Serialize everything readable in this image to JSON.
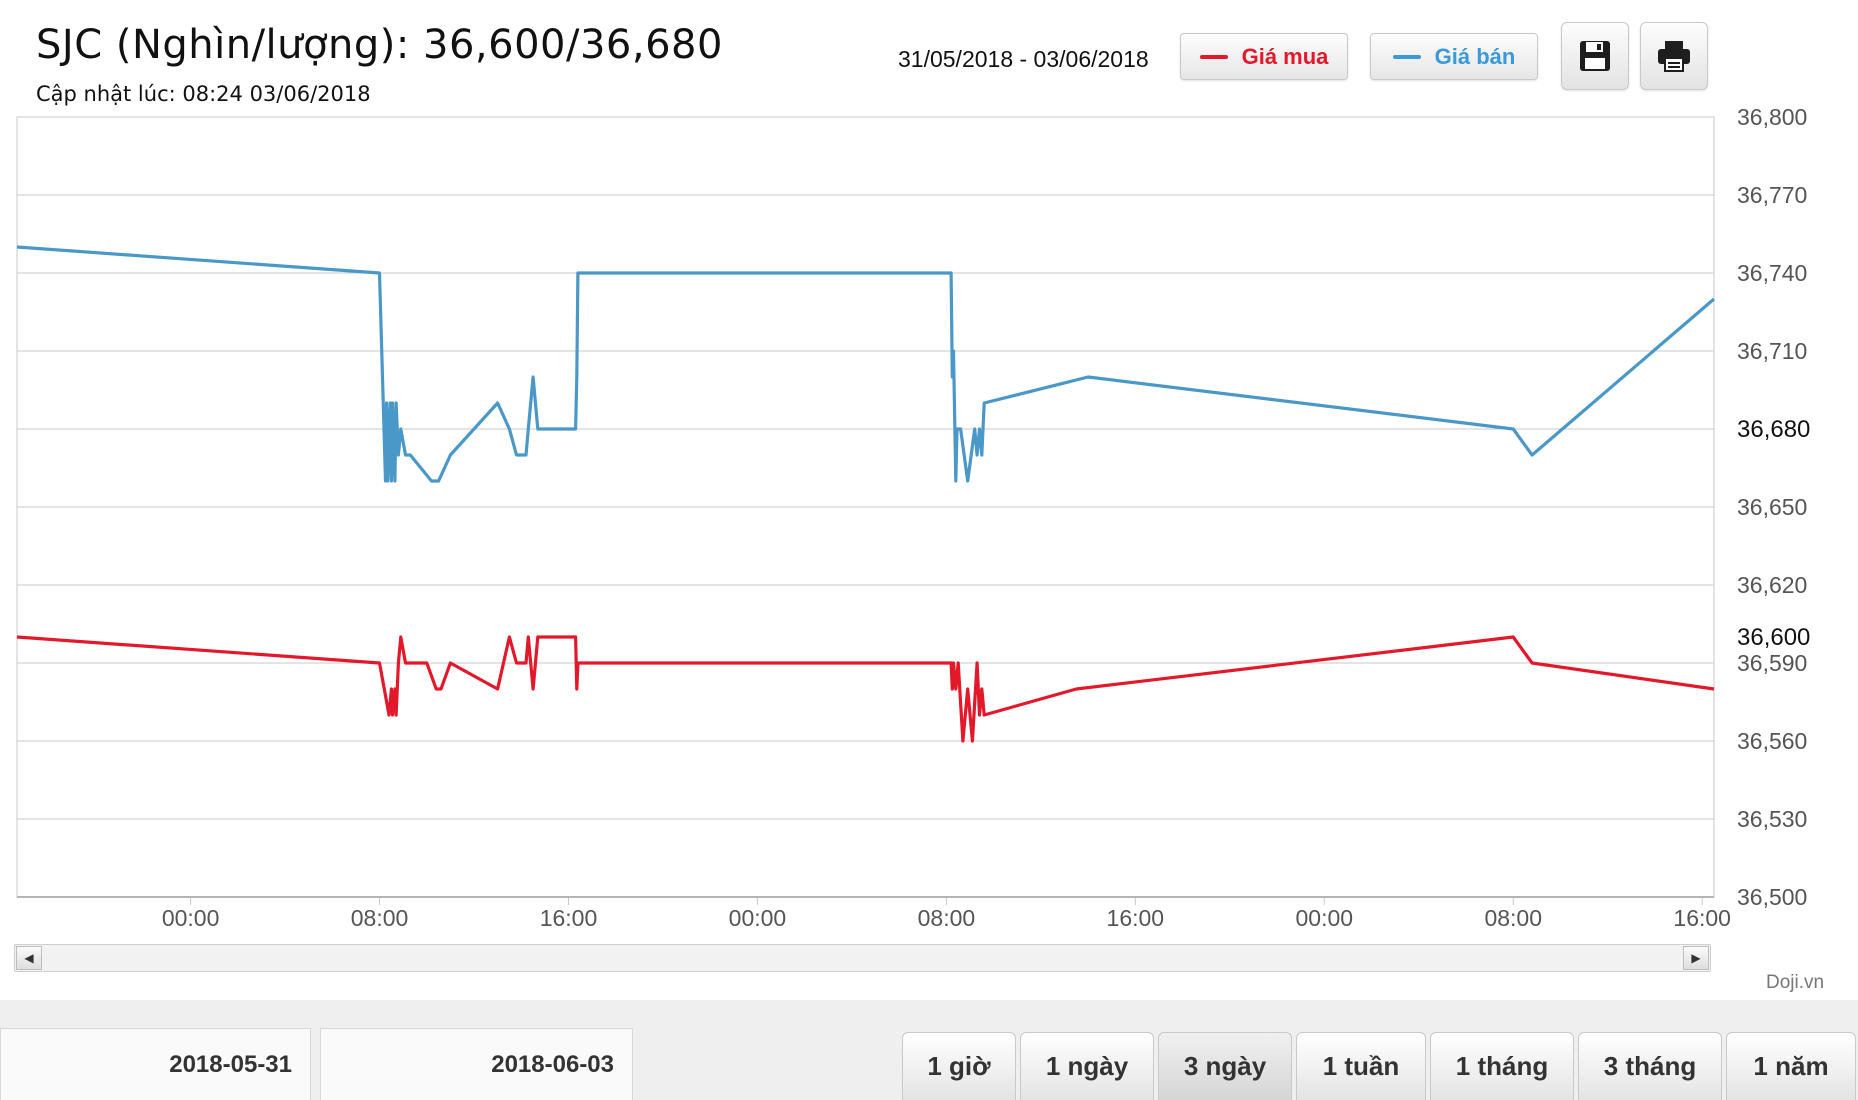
{
  "header": {
    "title_prefix": "SJC (Nghìn/lượng): ",
    "buy_value": "36,600",
    "separator": "/",
    "sell_value": "36,680",
    "updated": "Cập nhật lúc: 08:24 03/06/2018",
    "date_range": "31/05/2018 - 03/06/2018"
  },
  "legend": [
    {
      "label": "Giá mua",
      "color": "#e3182a"
    },
    {
      "label": "Giá bán",
      "color": "#3a9ad9"
    }
  ],
  "toolbar": {
    "save_icon": "floppy-disk-icon",
    "print_icon": "printer-icon"
  },
  "credit": "Doji.vn",
  "navigator": {
    "start": "2018-05-31",
    "end": "2018-06-03"
  },
  "periods": [
    {
      "label": "1 giờ",
      "active": false
    },
    {
      "label": "1 ngày",
      "active": false
    },
    {
      "label": "3 ngày",
      "active": true
    },
    {
      "label": "1 tuần",
      "active": false
    },
    {
      "label": "1 tháng",
      "active": false
    },
    {
      "label": "3 tháng",
      "active": false
    },
    {
      "label": "1 năm",
      "active": false
    }
  ],
  "chart_data": {
    "type": "line",
    "title": "SJC (Nghìn/lượng): 36,600/36,680",
    "xlabel": "",
    "ylabel": "",
    "x_unit": "hours",
    "x_tick_labels": [
      "00:00",
      "08:00",
      "16:00",
      "00:00",
      "08:00",
      "16:00",
      "00:00",
      "08:00",
      "16:00"
    ],
    "x_tick_values": [
      0,
      8,
      16,
      24,
      32,
      40,
      48,
      56,
      64
    ],
    "xlim": [
      -7.35,
      64.5
    ],
    "ylim": [
      36500,
      36800
    ],
    "y_ticks": [
      36500,
      36530,
      36560,
      36590,
      36620,
      36650,
      36680,
      36710,
      36740,
      36770,
      36800
    ],
    "y_tick_labels": [
      "36,500",
      "36,530",
      "36,560",
      "36,590",
      "36,620",
      "36,650",
      "36,680",
      "36,710",
      "36,740",
      "36,770",
      "36,800"
    ],
    "highlight_labels": [
      {
        "value": 36680,
        "label": "36,680"
      },
      {
        "value": 36600,
        "label": "36,600"
      }
    ],
    "grid": true,
    "legend_position": "top-right",
    "series": [
      {
        "name": "Giá bán",
        "color": "#4a98c8",
        "x": [
          -7.35,
          8.0,
          8.25,
          8.3,
          8.35,
          8.45,
          8.5,
          8.55,
          8.65,
          8.7,
          8.8,
          8.9,
          9.1,
          9.3,
          10.2,
          10.5,
          11.0,
          13.0,
          13.5,
          13.8,
          14.2,
          14.3,
          14.5,
          14.7,
          15.0,
          16.3,
          16.35,
          16.4,
          32.2,
          32.25,
          32.3,
          32.4,
          32.45,
          32.6,
          32.9,
          33.2,
          33.3,
          33.4,
          33.5,
          33.6,
          38.0,
          56.0,
          56.8,
          64.5
        ],
        "y": [
          36750,
          36740,
          36660,
          36690,
          36660,
          36690,
          36660,
          36690,
          36660,
          36690,
          36670,
          36680,
          36670,
          36670,
          36660,
          36660,
          36670,
          36690,
          36680,
          36670,
          36670,
          36680,
          36700,
          36680,
          36680,
          36680,
          36700,
          36740,
          36740,
          36700,
          36710,
          36660,
          36680,
          36680,
          36660,
          36680,
          36670,
          36680,
          36670,
          36690,
          36700,
          36680,
          36670,
          36730
        ]
      },
      {
        "name": "Giá mua",
        "color": "#e3182a",
        "x": [
          -7.35,
          8.0,
          8.2,
          8.4,
          8.5,
          8.55,
          8.65,
          8.7,
          8.8,
          8.9,
          9.1,
          10.0,
          10.4,
          10.6,
          11.0,
          13.0,
          13.5,
          13.8,
          14.2,
          14.3,
          14.5,
          14.7,
          15.0,
          16.3,
          16.35,
          16.4,
          32.2,
          32.25,
          32.3,
          32.4,
          32.5,
          32.7,
          32.9,
          33.1,
          33.3,
          33.4,
          33.5,
          33.6,
          37.5,
          56.0,
          56.8,
          64.5
        ],
        "y": [
          36600,
          36590,
          36580,
          36570,
          36580,
          36570,
          36580,
          36570,
          36590,
          36600,
          36590,
          36590,
          36580,
          36580,
          36590,
          36580,
          36600,
          36590,
          36590,
          36600,
          36580,
          36600,
          36600,
          36600,
          36580,
          36590,
          36590,
          36580,
          36590,
          36580,
          36590,
          36560,
          36580,
          36560,
          36590,
          36570,
          36580,
          36570,
          36580,
          36600,
          36590,
          36580
        ]
      }
    ]
  }
}
